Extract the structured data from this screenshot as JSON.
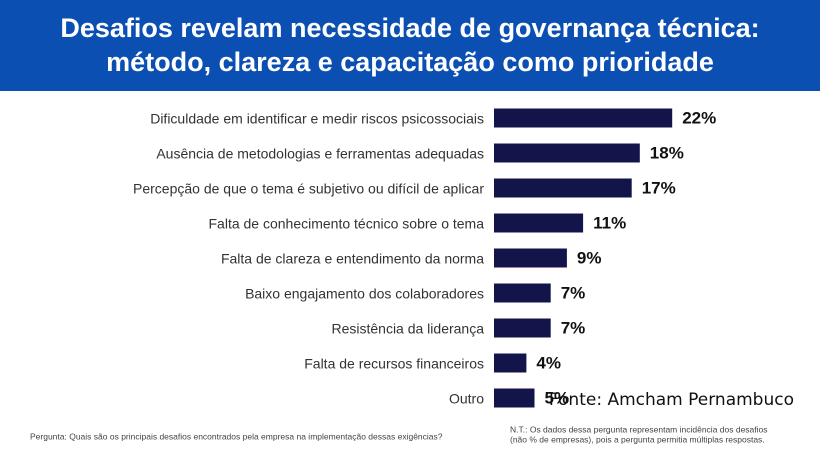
{
  "chart_data": {
    "type": "bar",
    "orientation": "horizontal",
    "title": [
      "Desafios revelam necessidade de governança técnica:",
      "método, clareza e capacitação como prioridade"
    ],
    "categories": [
      "Dificuldade em identificar e medir riscos psicossociais",
      "Ausência de metodologias e ferramentas adequadas",
      "Percepção de que o tema é subjetivo ou difícil de aplicar",
      "Falta de conhecimento técnico sobre o tema",
      "Falta de clareza e entendimento da norma",
      "Baixo engajamento dos colaboradores",
      "Resistência da liderança",
      "Falta de recursos financeiros",
      "Outro"
    ],
    "values": [
      22,
      18,
      17,
      11,
      9,
      7,
      7,
      4,
      5
    ],
    "value_labels": [
      "22%",
      "18%",
      "17%",
      "11%",
      "9%",
      "7%",
      "7%",
      "4%",
      "5%"
    ],
    "color": "#13144a",
    "source": "Fonte: Amcham Pernambuco",
    "question": "Pergunta: Quais são os principais desafios encontrados pela empresa na implementação dessas exigências?",
    "note": [
      "N.T.: Os dados dessa pergunta representam incidência dos desafios",
      "(não % de empresas), pois a pergunta permitia múltiplas respostas."
    ]
  }
}
